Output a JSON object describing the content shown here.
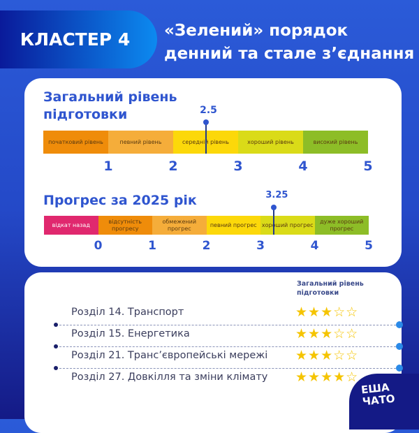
{
  "header": {
    "cluster": "КЛАСТЕР 4",
    "title_line1": "«Зелений» порядок",
    "title_line2": "денний та стале з’єднання"
  },
  "readiness": {
    "title_line1": "Загальний рівень",
    "title_line2": "підготовки",
    "value": 2.5,
    "value_label": "2.5",
    "segments": [
      {
        "label": "початковий рівень",
        "color": "#ef8c0a"
      },
      {
        "label": "певний рівень",
        "color": "#f5ad3a"
      },
      {
        "label": "середній рівень",
        "color": "#fcd80a"
      },
      {
        "label": "хороший рівень",
        "color": "#dadb18"
      },
      {
        "label": "високий рівень",
        "color": "#8dbd27"
      }
    ],
    "ticks": [
      "1",
      "2",
      "3",
      "4",
      "5"
    ]
  },
  "progress": {
    "title": "Прогрес за 2025 рік",
    "value": 3.25,
    "value_label": "3.25",
    "segments": [
      {
        "label": "відкат назад",
        "color": "#e0286e",
        "text": "#fff"
      },
      {
        "label": "відсутність прогресу",
        "color": "#ef8c0a"
      },
      {
        "label": "обмежений прогрес",
        "color": "#f5ad3a"
      },
      {
        "label": "певний прогрес",
        "color": "#fcd80a"
      },
      {
        "label": "хороший прогрес",
        "color": "#dadb18"
      },
      {
        "label": "дуже хороший прогрес",
        "color": "#8dbd27"
      }
    ],
    "ticks": [
      "0",
      "1",
      "2",
      "3",
      "4",
      "5"
    ]
  },
  "chapters": {
    "column_header": "Загальний рівень підготовки",
    "rows": [
      {
        "label": "Розділ 14. Транспорт",
        "stars": 3
      },
      {
        "label": "Розділ 15. Енергетика",
        "stars": 3
      },
      {
        "label": "Розділ 21. Транс’європейські мережі",
        "stars": 3
      },
      {
        "label": "Розділ 27. Довкілля та зміни клімату",
        "stars": 4
      }
    ],
    "max_stars": 5
  },
  "logo": {
    "line1": "ЕШ А",
    "line2": "ЧАТО"
  }
}
